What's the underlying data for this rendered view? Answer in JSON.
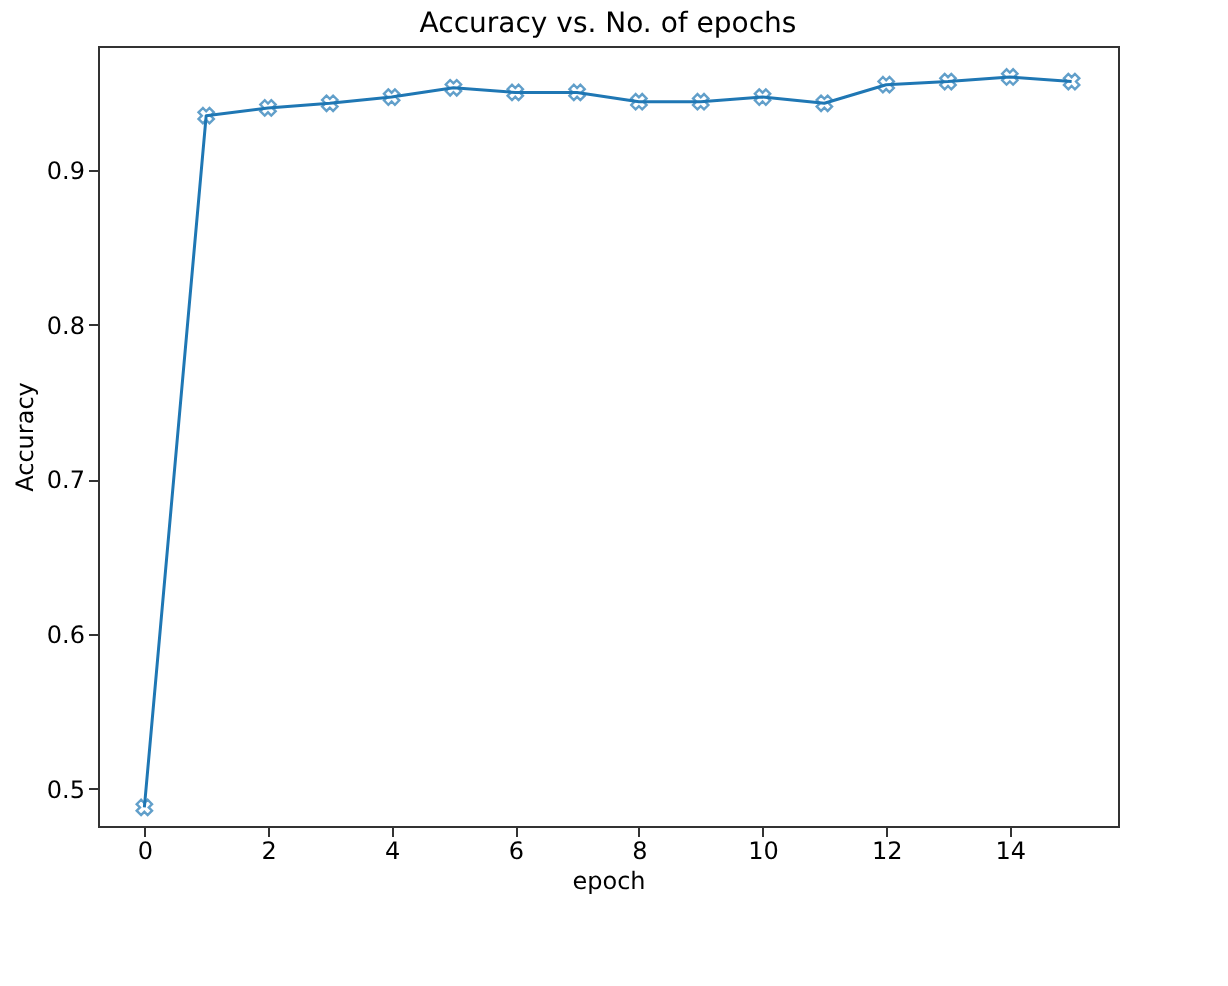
{
  "chart_data": {
    "type": "line",
    "title": "Accuracy vs. No. of epochs",
    "xlabel": "epoch",
    "ylabel": "Accuracy",
    "x": [
      0,
      1,
      2,
      3,
      4,
      5,
      6,
      7,
      8,
      9,
      10,
      11,
      12,
      13,
      14,
      15
    ],
    "series": [
      {
        "color": "#1f77b4",
        "values": [
          0.488,
          0.935,
          0.94,
          0.943,
          0.947,
          0.953,
          0.95,
          0.95,
          0.944,
          0.944,
          0.947,
          0.943,
          0.955,
          0.957,
          0.96,
          0.957
        ]
      }
    ],
    "xlim": [
      -0.75,
      15.75
    ],
    "xticks": [
      0,
      2,
      4,
      6,
      8,
      10,
      12,
      14
    ],
    "ylim": [
      0.476,
      0.98
    ],
    "yticks": [
      0.5,
      0.6,
      0.7,
      0.8,
      0.9
    ],
    "marker": "cross",
    "line_style": "solid",
    "grid": false
  }
}
